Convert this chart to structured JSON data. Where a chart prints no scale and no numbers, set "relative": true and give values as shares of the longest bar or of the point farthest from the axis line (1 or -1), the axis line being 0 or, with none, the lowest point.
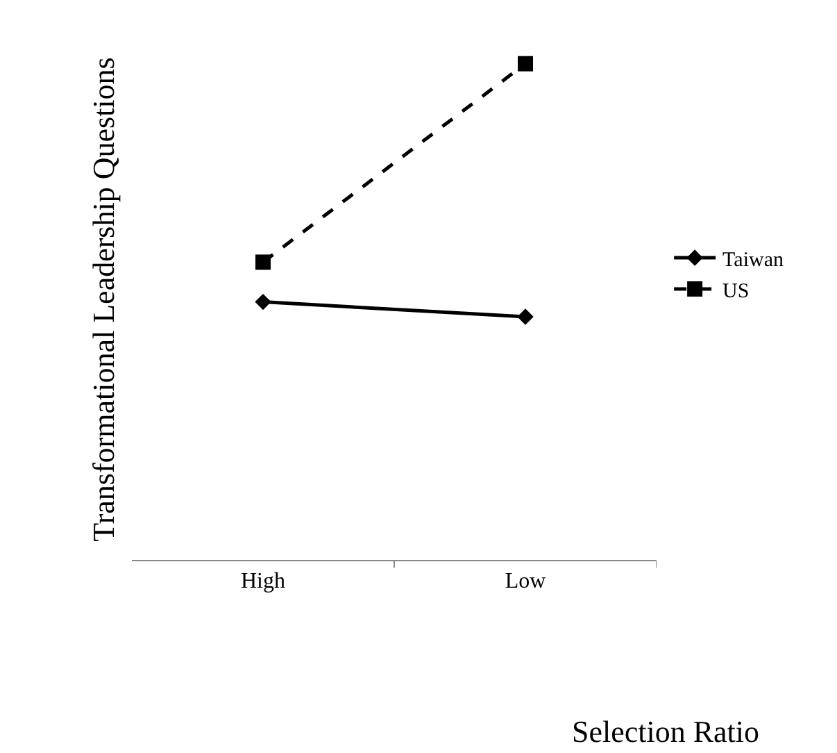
{
  "chart_data": {
    "type": "line",
    "relative": true,
    "xlabel": "Selection Ratio",
    "ylabel": "Transformational Leadership Questions",
    "categories": [
      "High",
      "Low"
    ],
    "series": [
      {
        "name": "Taiwan",
        "color": "#000000",
        "values": [
          0.52,
          0.49
        ],
        "marker": "diamond",
        "line_style": "solid"
      },
      {
        "name": "US",
        "color": "#000000",
        "values": [
          0.6,
          1.0
        ],
        "marker": "square",
        "line_style": "dashed"
      }
    ],
    "legend": "right"
  }
}
